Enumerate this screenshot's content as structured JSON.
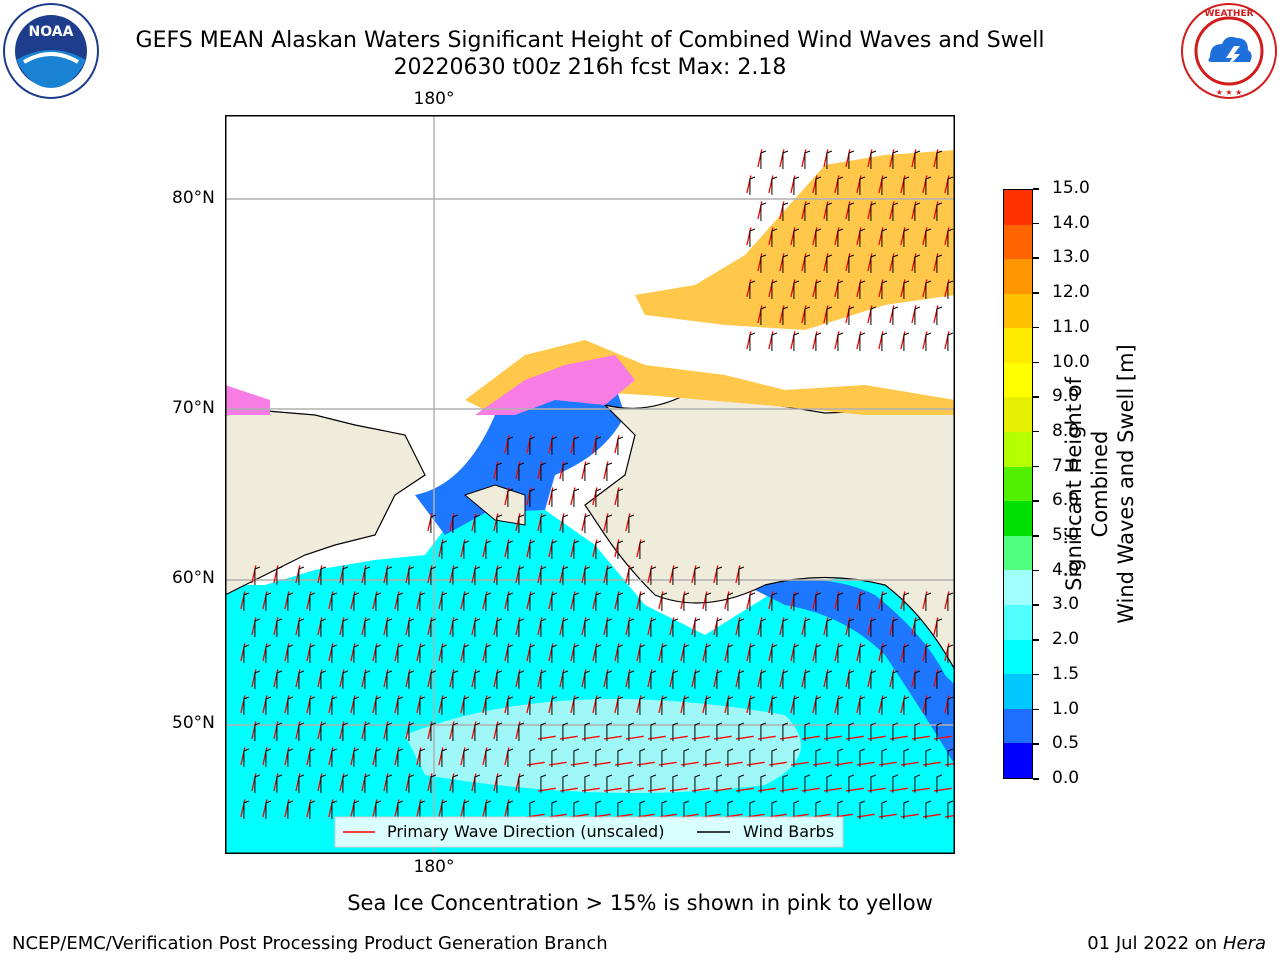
{
  "header": {
    "title_line1": "GEFS MEAN Alaskan Waters Significant Height of Combined Wind Waves and Swell",
    "title_line2": "20220630 t00z 216h fcst   Max: 2.18"
  },
  "logos": {
    "noaa_text": "NOAA",
    "noaa_ring_text": "NATIONAL OCEANIC AND ATMOSPHERIC ADMINISTRATION · U.S. DEPARTMENT OF COMMERCE",
    "nws_ring_text": "NATIONAL WEATHER SERVICE"
  },
  "map": {
    "lon_label_top": "180°",
    "lon_label_bottom": "180°",
    "lat_labels": [
      "80°N",
      "70°N",
      "60°N",
      "50°N"
    ],
    "legend": {
      "wave_label": "Primary Wave Direction (unscaled)",
      "wind_label": "Wind Barbs"
    },
    "colors": {
      "land": "#efecdc",
      "ocean_fill": "#00ffff",
      "ocean_light": "#9ff7f7",
      "coastal": "#1e78ff",
      "wave_arrow": "#ff0000",
      "ice_pink": "#f77de4",
      "ice_orange": "#ffc84a"
    }
  },
  "colorbar": {
    "label_line1": "Significant Height of Combined",
    "label_line2": "Wind Waves and Swell [m]",
    "ticks": [
      "15.0",
      "14.0",
      "13.0",
      "12.0",
      "11.0",
      "10.0",
      "9.0",
      "8.0",
      "7.0",
      "6.0",
      "5.0",
      "4.0",
      "3.0",
      "2.0",
      "1.5",
      "1.0",
      "0.5",
      "0.0"
    ],
    "colors": [
      "#0000ff",
      "#1e6eff",
      "#00c8ff",
      "#00ffff",
      "#50ffff",
      "#a0ffff",
      "#50ff80",
      "#00e000",
      "#50f000",
      "#b4ff00",
      "#e6f000",
      "#ffff00",
      "#ffeb00",
      "#ffc000",
      "#ff9600",
      "#ff6400",
      "#ff3200",
      "#ff0000"
    ]
  },
  "captions": {
    "sea_ice": "Sea Ice Concentration > 15% is shown in pink to yellow",
    "branch": "NCEP/EMC/Verification Post Processing Product Generation Branch",
    "date_prefix": "01 Jul 2022 on ",
    "machine": "Hera"
  }
}
